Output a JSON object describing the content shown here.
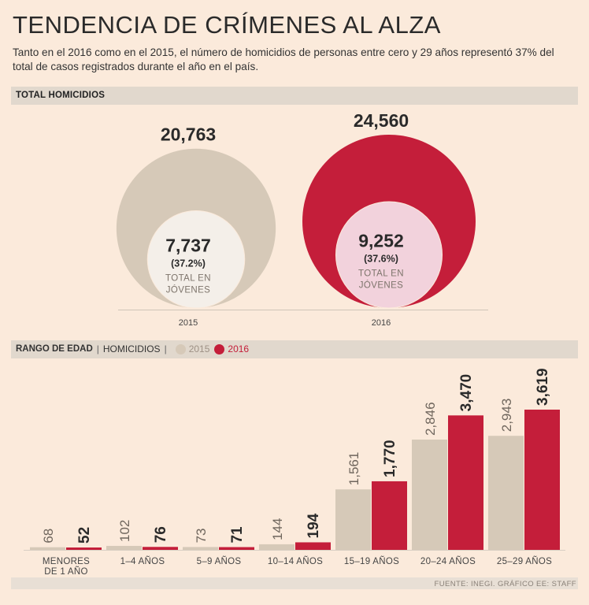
{
  "title": "TENDENCIA DE CRÍMENES AL ALZA",
  "subtitle": "Tanto en el 2016 como en el 2015, el número de homicidios de personas entre cero y 29 años representó 37% del total de casos registrados durante el año en el país.",
  "section1": {
    "label": "TOTAL HOMICIDIOS"
  },
  "section2": {
    "label": "RANGO DE EDAD",
    "sublabel": "HOMICIDIOS",
    "sep": "|"
  },
  "source": "FUENTE: INEGI. GRÁFICO EE: STAFF",
  "colors": {
    "c2015": "#d6c9b8",
    "c2016": "#c41e3a",
    "inner2015": "#f4efe9",
    "inner2016": "#f2d2dc"
  },
  "chart_data": [
    {
      "type": "bubble",
      "title": "TOTAL HOMICIDIOS",
      "items": [
        {
          "year": "2015",
          "total": 20763,
          "total_label": "20,763",
          "youth": 7737,
          "youth_label": "7,737",
          "pct_label": "(37.2%)",
          "caption": "TOTAL EN JÓVENES"
        },
        {
          "year": "2016",
          "total": 24560,
          "total_label": "24,560",
          "youth": 9252,
          "youth_label": "9,252",
          "pct_label": "(37.6%)",
          "caption": "TOTAL EN JÓVENES"
        }
      ]
    },
    {
      "type": "bar",
      "title": "RANGO DE EDAD | HOMICIDIOS",
      "categories": [
        "MENORES\nDE 1 AÑO",
        "1–4 AÑOS",
        "5–9 AÑOS",
        "10–14 AÑOS",
        "15–19 AÑOS",
        "20–24 AÑOS",
        "25–29 AÑOS"
      ],
      "series": [
        {
          "name": "2015",
          "values": [
            68,
            102,
            73,
            144,
            1561,
            2846,
            2943
          ],
          "labels": [
            "68",
            "102",
            "73",
            "144",
            "1,561",
            "2,846",
            "2,943"
          ]
        },
        {
          "name": "2016",
          "values": [
            52,
            76,
            71,
            194,
            1770,
            3470,
            3619
          ],
          "labels": [
            "52",
            "76",
            "71",
            "194",
            "1,770",
            "3,470",
            "3,619"
          ]
        }
      ],
      "ylim": [
        0,
        3619
      ]
    }
  ]
}
